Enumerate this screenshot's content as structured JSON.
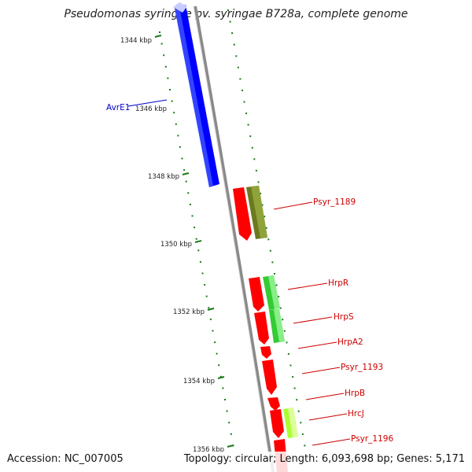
{
  "title": "Pseudomonas syringae pv. syringae B728a, complete genome",
  "footer": {
    "accession": "Accession: NC_007005",
    "summary": "Topology: circular; Length: 6,093,698 bp; Genes: 5,171"
  },
  "ticks": [
    {
      "label": "1344 kbp"
    },
    {
      "label": "1346 kbp"
    },
    {
      "label": "1348 kbp"
    },
    {
      "label": "1350 kbp"
    },
    {
      "label": "1352 kbp"
    },
    {
      "label": "1354 kbp"
    },
    {
      "label": "1356 kbp"
    }
  ],
  "genes": [
    {
      "label": "AvrE1",
      "color": "#0000cc"
    },
    {
      "label": "Psyr_1189",
      "color": "#cc0000"
    },
    {
      "label": "HrpR",
      "color": "#cc0000"
    },
    {
      "label": "HrpS",
      "color": "#cc0000"
    },
    {
      "label": "HrpA2",
      "color": "#cc0000"
    },
    {
      "label": "Psyr_1193",
      "color": "#cc0000"
    },
    {
      "label": "HrpB",
      "color": "#cc0000"
    },
    {
      "label": "HrcJ",
      "color": "#cc0000"
    },
    {
      "label": "Psyr_1196",
      "color": "#cc0000"
    }
  ],
  "colors": {
    "backbone": "#8a8a8a",
    "blue_gene": "#0000ff",
    "red_gene": "#ff0000",
    "olive_gene": "#6b7a1f",
    "green_gene": "#33cc33",
    "lime_gene": "#aaff33",
    "dotted_track": "#1a7a1a"
  }
}
